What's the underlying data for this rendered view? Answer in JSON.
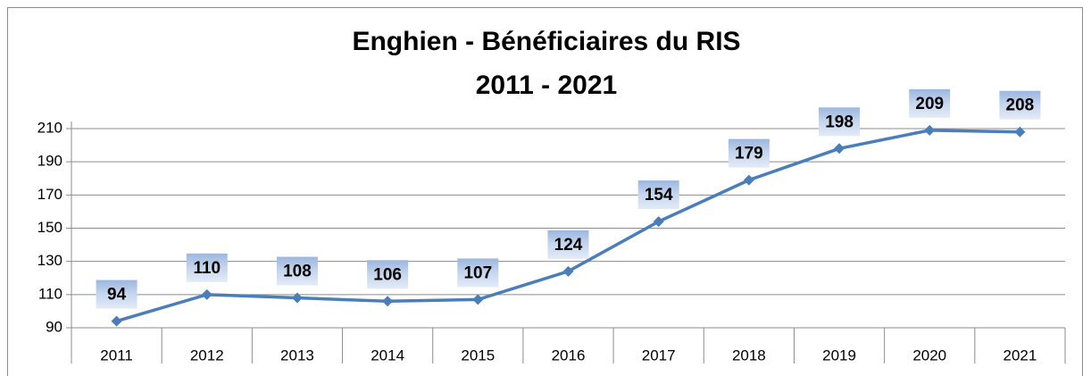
{
  "chart_data": {
    "type": "line",
    "title": "Enghien - Bénéficiaires du RIS",
    "subtitle": "2011 - 2021",
    "categories": [
      "2011",
      "2012",
      "2013",
      "2014",
      "2015",
      "2016",
      "2017",
      "2018",
      "2019",
      "2020",
      "2021"
    ],
    "series": [
      {
        "name": "Bénéficiaires du RIS",
        "color": "#4a7ebb",
        "values": [
          94,
          110,
          108,
          106,
          107,
          124,
          154,
          179,
          198,
          209,
          208
        ]
      }
    ],
    "ylim": [
      90,
      210
    ],
    "yticks": [
      90,
      110,
      130,
      150,
      170,
      190,
      210
    ],
    "grid": true
  }
}
